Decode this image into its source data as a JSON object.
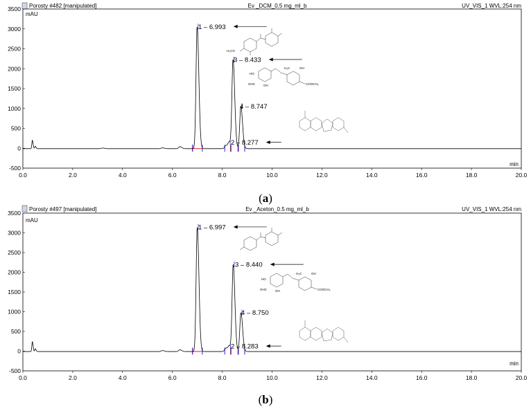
{
  "chart_data": [
    {
      "type": "line",
      "panel_label": "a",
      "header": {
        "left": "Porosty #482 [manipulated]",
        "center": "Ev _DCM_0.5 mg_ml_b",
        "right": "UV_VIS_1 WVL:254 nm"
      },
      "ylabel": "mAU",
      "xlabel": "min",
      "xlim": [
        0.0,
        20.0
      ],
      "ylim": [
        -500,
        3500
      ],
      "xticks": [
        "0.0",
        "2.0",
        "4.0",
        "6.0",
        "8.0",
        "10.0",
        "12.0",
        "14.0",
        "16.0",
        "18.0",
        "20.0"
      ],
      "yticks": [
        "-500",
        "0",
        "500",
        "1000",
        "1500",
        "2000",
        "2500",
        "3000",
        "3500"
      ],
      "peaks": [
        {
          "label": "1 – 6.993",
          "x": 6.993,
          "y": 3060
        },
        {
          "label": "2 – 8.277",
          "x": 8.277,
          "y": 150
        },
        {
          "label": "3 – 8.433",
          "x": 8.433,
          "y": 2230
        },
        {
          "label": "4 – 8.747",
          "x": 8.747,
          "y": 1060
        }
      ],
      "minor_peaks": [
        {
          "x": 0.38,
          "y": 210
        },
        {
          "x": 0.5,
          "y": 60
        },
        {
          "x": 3.2,
          "y": 15
        },
        {
          "x": 5.6,
          "y": 20
        },
        {
          "x": 6.3,
          "y": 50
        },
        {
          "x": 8.15,
          "y": 80
        }
      ],
      "baseline": -10
    },
    {
      "type": "line",
      "panel_label": "b",
      "header": {
        "left": "Porosty #497 [manipulated]",
        "center": "Ev _Aceton_0.5 mg_ml_b",
        "right": "UV_VIS_1 WVL:254 nm"
      },
      "ylabel": "mAU",
      "xlabel": "min",
      "xlim": [
        0.0,
        20.0
      ],
      "ylim": [
        -500,
        3500
      ],
      "xticks": [
        "0.0",
        "2.0",
        "4.0",
        "6.0",
        "8.0",
        "10.0",
        "12.0",
        "14.0",
        "16.0",
        "18.0",
        "20.0"
      ],
      "yticks": [
        "-500",
        "0",
        "500",
        "1000",
        "1500",
        "2000",
        "2500",
        "3000",
        "3500"
      ],
      "peaks": [
        {
          "label": "1 – 6.997",
          "x": 6.997,
          "y": 3150
        },
        {
          "label": "2 – 8.283",
          "x": 8.283,
          "y": 130
        },
        {
          "label": "3 – 8.440",
          "x": 8.44,
          "y": 2200
        },
        {
          "label": "4 – 8.750",
          "x": 8.75,
          "y": 980
        }
      ],
      "minor_peaks": [
        {
          "x": 0.38,
          "y": 250
        },
        {
          "x": 0.5,
          "y": 70
        },
        {
          "x": 5.6,
          "y": 25
        },
        {
          "x": 6.3,
          "y": 45
        },
        {
          "x": 8.15,
          "y": 90
        }
      ],
      "baseline": -10
    }
  ],
  "structures": {
    "a_struct2_label": "H₃CO",
    "a_struct3_labels": [
      "HO",
      "OHC",
      "OH",
      "H₃C",
      "OH",
      "COOCH₃"
    ],
    "b_struct2_labels": [
      "HO",
      "OHC",
      "OH",
      "H₃C",
      "OH",
      "COOCH₃"
    ]
  },
  "colors": {
    "trace": "#000000",
    "frame": "#000000",
    "marker_blue": "#2222cc",
    "marker_red": "#cc2222",
    "marker_pink": "#dd66aa"
  }
}
